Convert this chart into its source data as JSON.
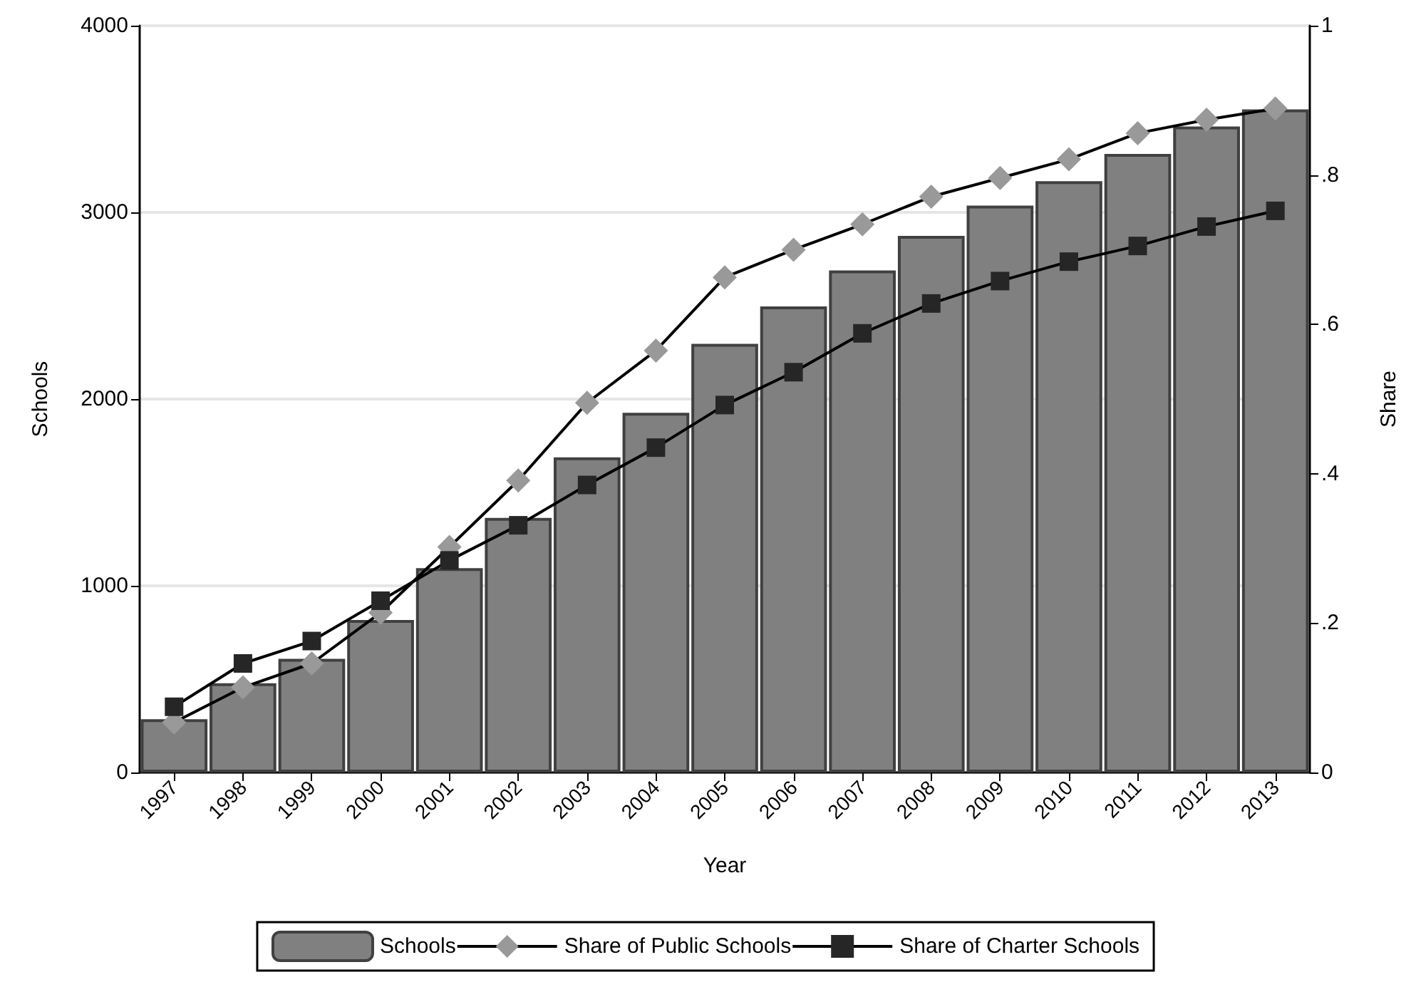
{
  "chart_data": {
    "type": "bar",
    "xlabel": "Year",
    "ylabel": "Schools",
    "y2label": "Share",
    "categories": [
      "1997",
      "1998",
      "1999",
      "2000",
      "2001",
      "2002",
      "2003",
      "2004",
      "2005",
      "2006",
      "2007",
      "2008",
      "2009",
      "2010",
      "2011",
      "2012",
      "2013"
    ],
    "series": [
      {
        "name": "Schools",
        "color": "#808080",
        "values": [
          285,
          478,
          609,
          817,
          1094,
          1364,
          1688,
          1927,
          2296,
          2496,
          2689,
          2874,
          3036,
          3167,
          3313,
          3460,
          3552
        ]
      },
      {
        "name": "Share of Public Schools",
        "type": "line",
        "axis": "y2",
        "marker": "diamond",
        "color": "#999999",
        "values": [
          0.067,
          0.114,
          0.146,
          0.214,
          0.302,
          0.391,
          0.495,
          0.565,
          0.663,
          0.7,
          0.734,
          0.771,
          0.796,
          0.821,
          0.856,
          0.874,
          0.889
        ]
      },
      {
        "name": "Share of Charter Schools",
        "type": "line",
        "axis": "y2",
        "marker": "square",
        "color": "#262626",
        "values": [
          0.088,
          0.146,
          0.176,
          0.23,
          0.284,
          0.331,
          0.385,
          0.435,
          0.492,
          0.536,
          0.588,
          0.628,
          0.658,
          0.684,
          0.705,
          0.731,
          0.752
        ]
      }
    ],
    "ylim": [
      0,
      4000
    ],
    "yticks": [
      0,
      1000,
      2000,
      3000,
      4000
    ],
    "y2lim": [
      0,
      1
    ],
    "y2ticks": [
      {
        "value": 0,
        "label": "0"
      },
      {
        "value": 0.2,
        "label": ".2"
      },
      {
        "value": 0.4,
        "label": ".4"
      },
      {
        "value": 0.6,
        "label": ".6"
      },
      {
        "value": 0.8,
        "label": ".8"
      },
      {
        "value": 1,
        "label": "1"
      }
    ],
    "grid": "y",
    "legend": "bottom"
  }
}
